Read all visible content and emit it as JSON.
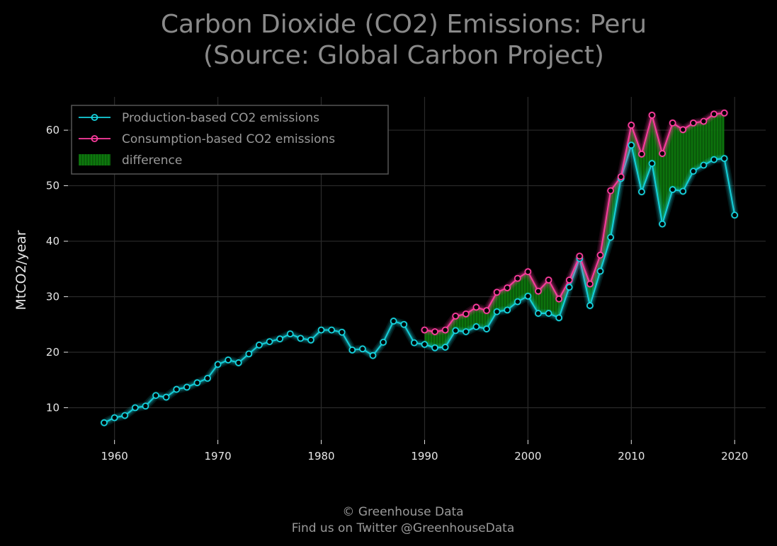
{
  "footer": {
    "line1": "© Greenhouse Data",
    "line2": "Find us on Twitter @GreenhouseData"
  },
  "colors": {
    "background": "#000000",
    "production": "#16d3de",
    "consumption": "#ff3da0",
    "difference": "#0c7a0c",
    "grid": "#2b2b2b",
    "text": "#e6e6e6",
    "title": "#8a8a8a"
  },
  "chart_data": {
    "type": "line",
    "title": [
      "Carbon Dioxide (CO2) Emissions: Peru",
      "(Source: Global Carbon Project)"
    ],
    "xlabel": "",
    "ylabel": "MtCO2/year",
    "xlim": [
      1955.5,
      2023
    ],
    "ylim": [
      4.2,
      66
    ],
    "xticks": [
      1960,
      1970,
      1980,
      1990,
      2000,
      2010,
      2020
    ],
    "yticks": [
      10,
      20,
      30,
      40,
      50,
      60
    ],
    "grid": true,
    "legend_position": "top-left",
    "legend": [
      "Production-based CO2 emissions",
      "Consumption-based CO2 emissions",
      "difference"
    ],
    "series": [
      {
        "name": "Production-based CO2 emissions",
        "x": [
          1959,
          1960,
          1961,
          1962,
          1963,
          1964,
          1965,
          1966,
          1967,
          1968,
          1969,
          1970,
          1971,
          1972,
          1973,
          1974,
          1975,
          1976,
          1977,
          1978,
          1979,
          1980,
          1981,
          1982,
          1983,
          1984,
          1985,
          1986,
          1987,
          1988,
          1989,
          1990,
          1991,
          1992,
          1993,
          1994,
          1995,
          1996,
          1997,
          1998,
          1999,
          2000,
          2001,
          2002,
          2003,
          2004,
          2005,
          2006,
          2007,
          2008,
          2009,
          2010,
          2011,
          2012,
          2013,
          2014,
          2015,
          2016,
          2017,
          2018,
          2019,
          2020
        ],
        "values": [
          7.3,
          8.2,
          8.6,
          10.0,
          10.3,
          12.2,
          11.9,
          13.3,
          13.7,
          14.5,
          15.3,
          17.8,
          18.6,
          18.1,
          19.7,
          21.3,
          21.9,
          22.4,
          23.3,
          22.5,
          22.2,
          24.0,
          24.0,
          23.6,
          20.4,
          20.6,
          19.4,
          21.8,
          25.6,
          25.0,
          21.7,
          21.4,
          20.8,
          20.9,
          23.9,
          23.7,
          24.6,
          24.2,
          27.3,
          27.6,
          29.1,
          30.1,
          27.0,
          27.0,
          26.2,
          31.7,
          36.9,
          28.4,
          34.6,
          40.7,
          51.3,
          57.3,
          48.9,
          54.0,
          43.1,
          49.3,
          49.0,
          52.6,
          53.7,
          54.7,
          54.9,
          44.7
        ]
      },
      {
        "name": "Consumption-based CO2 emissions",
        "x": [
          1990,
          1991,
          1992,
          1993,
          1994,
          1995,
          1996,
          1997,
          1998,
          1999,
          2000,
          2001,
          2002,
          2003,
          2004,
          2005,
          2006,
          2007,
          2008,
          2009,
          2010,
          2011,
          2012,
          2013,
          2014,
          2015,
          2016,
          2017,
          2018,
          2019
        ],
        "values": [
          24.0,
          23.7,
          24.0,
          26.5,
          26.9,
          28.1,
          27.5,
          30.8,
          31.6,
          33.3,
          34.5,
          31.0,
          33.0,
          29.6,
          33.0,
          37.3,
          32.3,
          37.5,
          49.1,
          51.6,
          60.9,
          55.7,
          62.7,
          55.8,
          61.3,
          60.1,
          61.3,
          61.6,
          62.9,
          63.1
        ]
      }
    ]
  }
}
